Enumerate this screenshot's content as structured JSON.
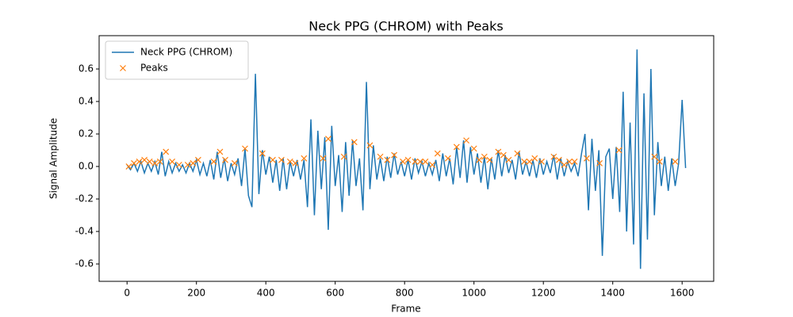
{
  "chart_data": {
    "type": "line",
    "title": "Neck PPG (CHROM) with Peaks",
    "x_label": "Frame",
    "y_label": "Signal Amplitude",
    "xlim": [
      -80.5,
      1691
    ],
    "ylim": [
      -0.707,
      0.805
    ],
    "xticks": [
      0,
      200,
      400,
      600,
      800,
      1000,
      1200,
      1400,
      1600
    ],
    "yticks": [
      -0.6,
      -0.4,
      -0.2,
      {
        "value": 0,
        "label": "0.0"
      },
      0.2,
      0.4,
      0.6
    ],
    "legend": "upper left",
    "grid": false,
    "series": [
      {
        "name": "Neck PPG (CHROM)",
        "color": "#1f77b4",
        "style": "line",
        "x": [
          0,
          10,
          20,
          30,
          40,
          50,
          60,
          70,
          80,
          90,
          100,
          110,
          120,
          130,
          140,
          150,
          160,
          170,
          180,
          190,
          200,
          210,
          220,
          230,
          240,
          250,
          260,
          270,
          280,
          290,
          300,
          310,
          320,
          330,
          340,
          350,
          360,
          370,
          380,
          390,
          400,
          410,
          420,
          430,
          440,
          450,
          460,
          470,
          480,
          490,
          500,
          510,
          520,
          530,
          540,
          550,
          560,
          570,
          580,
          590,
          600,
          610,
          620,
          630,
          640,
          650,
          660,
          670,
          680,
          690,
          700,
          710,
          720,
          730,
          740,
          750,
          760,
          770,
          780,
          790,
          800,
          810,
          820,
          830,
          840,
          850,
          860,
          870,
          880,
          890,
          900,
          910,
          920,
          930,
          940,
          950,
          960,
          970,
          980,
          990,
          1000,
          1010,
          1020,
          1030,
          1040,
          1050,
          1060,
          1070,
          1080,
          1090,
          1100,
          1110,
          1120,
          1130,
          1140,
          1150,
          1160,
          1170,
          1180,
          1190,
          1200,
          1210,
          1220,
          1230,
          1240,
          1250,
          1260,
          1270,
          1280,
          1290,
          1300,
          1310,
          1320,
          1330,
          1340,
          1350,
          1360,
          1370,
          1380,
          1390,
          1400,
          1410,
          1420,
          1430,
          1440,
          1450,
          1460,
          1470,
          1480,
          1490,
          1500,
          1510,
          1520,
          1530,
          1540,
          1550,
          1560,
          1570,
          1580,
          1590,
          1600,
          1610
        ],
        "values": [
          0.01,
          -0.02,
          0.02,
          -0.03,
          0.03,
          -0.04,
          0.02,
          -0.03,
          0.03,
          -0.05,
          0.09,
          -0.06,
          0.03,
          -0.04,
          0.02,
          -0.03,
          0.01,
          -0.04,
          0.02,
          -0.03,
          0.04,
          -0.05,
          0.02,
          -0.06,
          0.04,
          -0.08,
          0.09,
          -0.07,
          0.05,
          -0.09,
          0.02,
          -0.05,
          0.05,
          -0.12,
          0.11,
          -0.18,
          -0.25,
          0.57,
          -0.17,
          0.1,
          -0.05,
          0.06,
          -0.1,
          0.04,
          -0.15,
          0.05,
          -0.14,
          0.03,
          -0.06,
          0.04,
          -0.08,
          0.04,
          -0.25,
          0.29,
          -0.3,
          0.22,
          -0.14,
          0.18,
          -0.39,
          0.25,
          -0.12,
          0.07,
          -0.28,
          0.15,
          -0.18,
          0.16,
          -0.12,
          0.05,
          -0.27,
          0.52,
          -0.14,
          0.13,
          -0.08,
          0.05,
          -0.09,
          0.06,
          -0.07,
          0.08,
          -0.05,
          0.03,
          -0.06,
          0.04,
          -0.08,
          0.05,
          -0.04,
          0.03,
          -0.06,
          0.02,
          -0.05,
          0.04,
          -0.09,
          0.08,
          -0.06,
          0.05,
          -0.11,
          0.12,
          -0.07,
          0.16,
          -0.1,
          0.12,
          -0.05,
          0.08,
          -0.1,
          0.06,
          -0.14,
          0.05,
          -0.08,
          0.1,
          -0.06,
          0.07,
          -0.04,
          0.04,
          -0.08,
          0.09,
          -0.05,
          0.03,
          -0.06,
          0.04,
          -0.07,
          0.05,
          -0.05,
          0.03,
          -0.04,
          0.07,
          -0.08,
          0.05,
          -0.06,
          0.03,
          -0.03,
          0.02,
          -0.06,
          0.08,
          0.2,
          -0.27,
          0.17,
          -0.15,
          0.1,
          -0.55,
          0.06,
          0.11,
          -0.2,
          0.12,
          -0.28,
          0.46,
          -0.4,
          0.27,
          -0.48,
          0.72,
          -0.63,
          0.45,
          -0.45,
          0.6,
          -0.3,
          0.15,
          -0.12,
          0.06,
          -0.15,
          0.05,
          -0.12,
          0.02,
          0.41,
          -0.01
        ]
      },
      {
        "name": "Peaks",
        "color": "#ff7f0e",
        "style": "x",
        "x": [
          5,
          20,
          35,
          50,
          65,
          80,
          95,
          112,
          130,
          150,
          175,
          190,
          205,
          250,
          268,
          283,
          310,
          340,
          390,
          420,
          445,
          470,
          485,
          510,
          565,
          580,
          625,
          655,
          700,
          730,
          750,
          770,
          795,
          810,
          830,
          845,
          860,
          880,
          895,
          925,
          950,
          978,
          1000,
          1015,
          1030,
          1045,
          1070,
          1085,
          1100,
          1125,
          1145,
          1160,
          1175,
          1195,
          1230,
          1245,
          1260,
          1275,
          1290,
          1325,
          1362,
          1418,
          1520,
          1535,
          1580
        ],
        "values": [
          0.0,
          0.02,
          0.03,
          0.04,
          0.03,
          0.02,
          0.03,
          0.09,
          0.03,
          0.01,
          0.01,
          0.02,
          0.04,
          0.03,
          0.09,
          0.04,
          0.02,
          0.11,
          0.08,
          0.04,
          0.04,
          0.03,
          0.02,
          0.05,
          0.05,
          0.17,
          0.06,
          0.15,
          0.13,
          0.06,
          0.04,
          0.07,
          0.03,
          0.04,
          0.03,
          0.03,
          0.03,
          0.01,
          0.08,
          0.05,
          0.12,
          0.16,
          0.11,
          0.04,
          0.06,
          0.04,
          0.09,
          0.07,
          0.04,
          0.08,
          0.03,
          0.03,
          0.05,
          0.03,
          0.06,
          0.04,
          0.01,
          0.03,
          0.03,
          0.05,
          0.02,
          0.1,
          0.06,
          0.03,
          0.03
        ]
      }
    ]
  }
}
